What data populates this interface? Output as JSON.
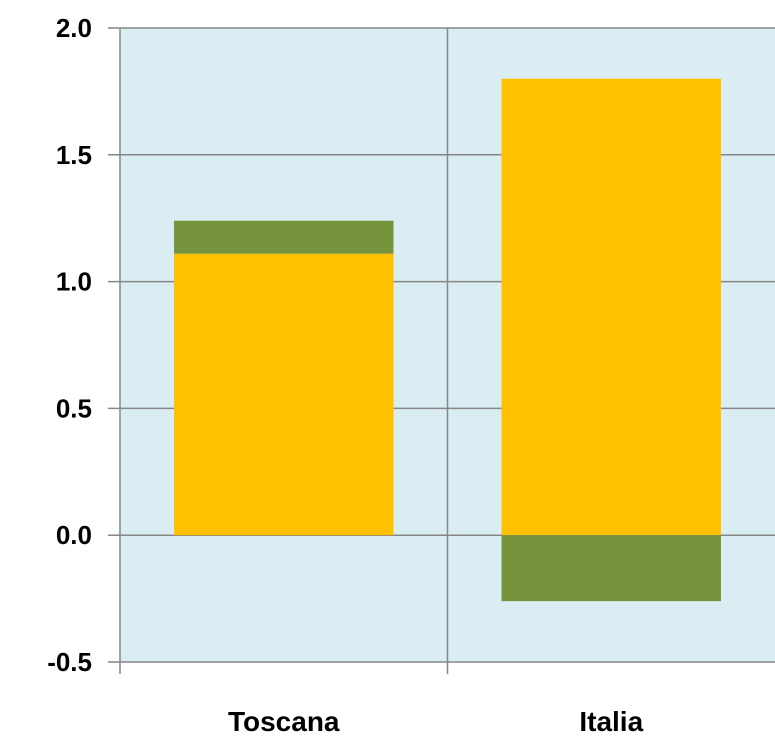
{
  "colors": {
    "plot_background": "#DAEDF2",
    "gridline": "#868686",
    "series_a": "#FFC000",
    "series_b": "#77933C"
  },
  "chart_data": {
    "type": "bar",
    "stacked": true,
    "categories": [
      "Toscana",
      "Italia"
    ],
    "series": [
      {
        "values": [
          1.11,
          1.8
        ]
      },
      {
        "values": [
          0.13,
          -0.26
        ]
      }
    ],
    "ylim": [
      -0.5,
      2.0
    ],
    "yticks": [
      2.0,
      1.5,
      1.0,
      0.5,
      0.0,
      -0.5
    ],
    "ytick_labels": [
      "2.0",
      "1.5",
      "1.0",
      "0.5",
      "0.0",
      "-0.5"
    ],
    "grid": {
      "horizontal": true,
      "vertical_category_separators": true
    },
    "legend": "none",
    "title": "",
    "xlabel": "",
    "ylabel": ""
  }
}
